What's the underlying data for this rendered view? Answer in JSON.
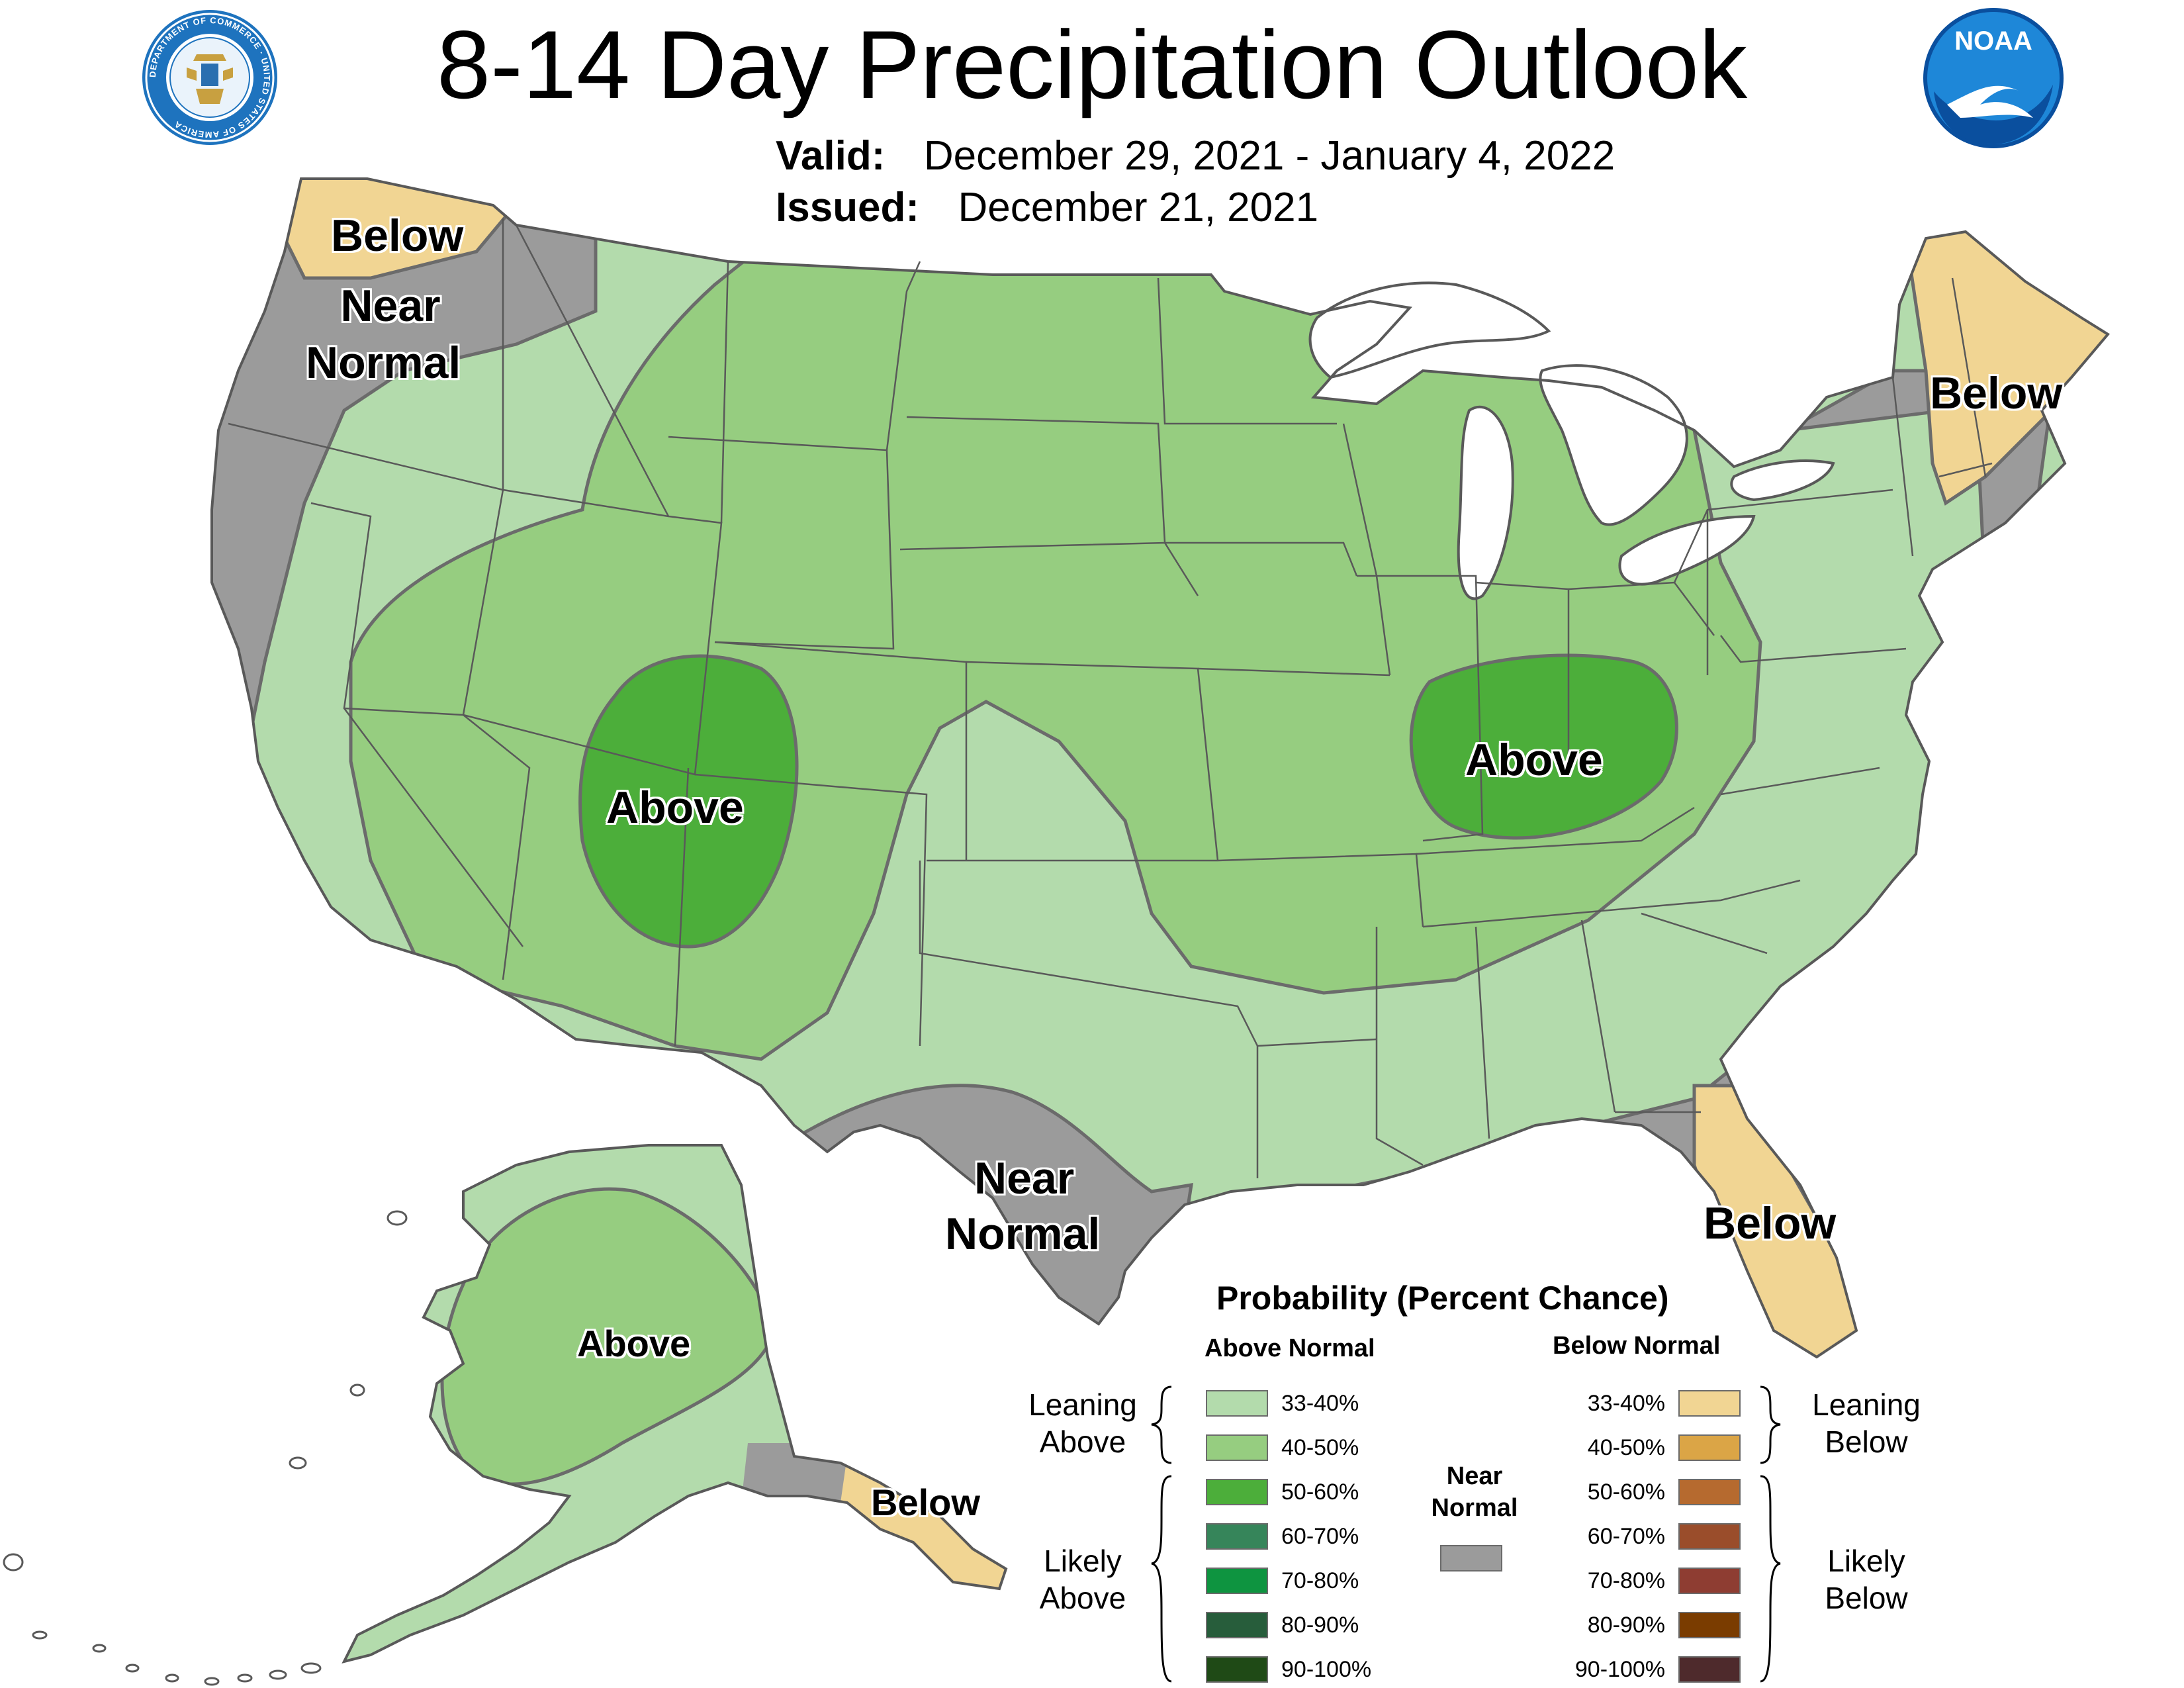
{
  "header": {
    "title": "8-14 Day Precipitation Outlook",
    "valid_label": "Valid:",
    "valid_value": "December 29, 2021 - January 4, 2022",
    "issued_label": "Issued:",
    "issued_value": "December 21, 2021",
    "left_logo": "department-of-commerce-seal",
    "right_logo": "noaa-logo",
    "right_logo_text": "NOAA",
    "seal_text": "DEPARTMENT OF COMMERCE · UNITED STATES OF AMERICA"
  },
  "map": {
    "labels": {
      "nw_below": "Below",
      "nw_near": "Near",
      "nw_normal": "Normal",
      "ne_below": "Below",
      "sw_above": "Above",
      "ohio_above": "Above",
      "tx_near": "Near",
      "tx_normal": "Normal",
      "fl_below": "Below",
      "ak_above": "Above",
      "ak_below": "Below"
    },
    "colors": {
      "above_33_40": "#b3dbac",
      "above_40_50": "#96cd80",
      "above_50_60": "#4cae3a",
      "near_normal": "#9b9b9b",
      "below_33_40": "#f1d593",
      "great_lakes": "#ffffff",
      "border": "#595959"
    }
  },
  "legend": {
    "title": "Probability (Percent Chance)",
    "above_header": "Above Normal",
    "below_header": "Below Normal",
    "near_header_1": "Near",
    "near_header_2": "Normal",
    "leaning_above": [
      "Leaning",
      "Above"
    ],
    "likely_above": [
      "Likely",
      "Above"
    ],
    "leaning_below": [
      "Leaning",
      "Below"
    ],
    "likely_below": [
      "Likely",
      "Below"
    ],
    "above_items": [
      {
        "label": "33-40%",
        "color": "#b3dbac"
      },
      {
        "label": "40-50%",
        "color": "#96cd80"
      },
      {
        "label": "50-60%",
        "color": "#4cae3a"
      },
      {
        "label": "60-70%",
        "color": "#36855a"
      },
      {
        "label": "70-80%",
        "color": "#0e9440"
      },
      {
        "label": "80-90%",
        "color": "#275d3b"
      },
      {
        "label": "90-100%",
        "color": "#1f4a16"
      }
    ],
    "below_items": [
      {
        "label": "33-40%",
        "color": "#f1d593"
      },
      {
        "label": "40-50%",
        "color": "#dba546"
      },
      {
        "label": "50-60%",
        "color": "#b66a2f"
      },
      {
        "label": "60-70%",
        "color": "#9a4d2b"
      },
      {
        "label": "70-80%",
        "color": "#8e3d32"
      },
      {
        "label": "80-90%",
        "color": "#7a3c00"
      },
      {
        "label": "90-100%",
        "color": "#4e2a2c"
      }
    ],
    "near_color": "#9b9b9b"
  }
}
